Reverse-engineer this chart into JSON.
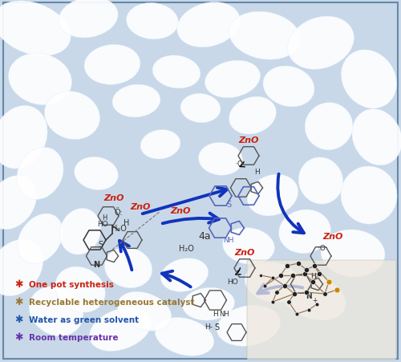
{
  "figsize": [
    5.0,
    4.52
  ],
  "dpi": 100,
  "bg_color": "#c8d8e8",
  "border_color": "#6688aa",
  "petal_color": "#ffffff",
  "petal_edge": "#ddeeff",
  "petals": [
    [
      0.08,
      0.92,
      0.2,
      0.14,
      -20
    ],
    [
      0.22,
      0.95,
      0.15,
      0.11,
      10
    ],
    [
      0.38,
      0.94,
      0.13,
      0.1,
      -5
    ],
    [
      0.52,
      0.93,
      0.16,
      0.12,
      15
    ],
    [
      0.66,
      0.9,
      0.18,
      0.13,
      -10
    ],
    [
      0.8,
      0.88,
      0.17,
      0.14,
      20
    ],
    [
      0.92,
      0.78,
      0.13,
      0.17,
      35
    ],
    [
      0.94,
      0.62,
      0.12,
      0.16,
      25
    ],
    [
      0.92,
      0.46,
      0.14,
      0.16,
      15
    ],
    [
      0.88,
      0.3,
      0.16,
      0.13,
      -5
    ],
    [
      0.78,
      0.18,
      0.17,
      0.12,
      -20
    ],
    [
      0.62,
      0.1,
      0.16,
      0.11,
      10
    ],
    [
      0.46,
      0.07,
      0.15,
      0.1,
      -15
    ],
    [
      0.3,
      0.09,
      0.16,
      0.11,
      20
    ],
    [
      0.14,
      0.14,
      0.14,
      0.13,
      -30
    ],
    [
      0.04,
      0.26,
      0.12,
      0.17,
      -40
    ],
    [
      0.03,
      0.44,
      0.11,
      0.16,
      -35
    ],
    [
      0.05,
      0.62,
      0.13,
      0.18,
      -25
    ],
    [
      0.1,
      0.78,
      0.16,
      0.14,
      -15
    ],
    [
      0.28,
      0.82,
      0.14,
      0.11,
      5
    ],
    [
      0.44,
      0.8,
      0.12,
      0.09,
      -8
    ],
    [
      0.58,
      0.78,
      0.14,
      0.1,
      12
    ],
    [
      0.72,
      0.76,
      0.13,
      0.11,
      -15
    ],
    [
      0.82,
      0.65,
      0.12,
      0.13,
      30
    ],
    [
      0.8,
      0.5,
      0.11,
      0.13,
      20
    ],
    [
      0.76,
      0.36,
      0.13,
      0.12,
      10
    ],
    [
      0.68,
      0.22,
      0.14,
      0.11,
      -10
    ],
    [
      0.52,
      0.16,
      0.13,
      0.09,
      5
    ],
    [
      0.36,
      0.14,
      0.14,
      0.1,
      -20
    ],
    [
      0.2,
      0.2,
      0.13,
      0.12,
      -30
    ],
    [
      0.1,
      0.34,
      0.1,
      0.15,
      -35
    ],
    [
      0.1,
      0.52,
      0.11,
      0.15,
      -28
    ],
    [
      0.18,
      0.68,
      0.14,
      0.13,
      -18
    ],
    [
      0.34,
      0.72,
      0.12,
      0.09,
      5
    ],
    [
      0.5,
      0.7,
      0.1,
      0.08,
      -5
    ],
    [
      0.63,
      0.68,
      0.12,
      0.1,
      18
    ],
    [
      0.24,
      0.52,
      0.11,
      0.09,
      -10
    ],
    [
      0.4,
      0.6,
      0.1,
      0.08,
      8
    ],
    [
      0.55,
      0.56,
      0.11,
      0.09,
      -5
    ],
    [
      0.68,
      0.46,
      0.13,
      0.11,
      20
    ],
    [
      0.62,
      0.32,
      0.13,
      0.1,
      -8
    ],
    [
      0.46,
      0.24,
      0.12,
      0.09,
      12
    ],
    [
      0.32,
      0.26,
      0.12,
      0.11,
      -15
    ],
    [
      0.2,
      0.36,
      0.1,
      0.13,
      -22
    ]
  ],
  "zno_color": "#cc2211",
  "arrow_color": "#1133bb",
  "legend": [
    {
      "sym": "✱",
      "text": "One pot synthesis",
      "sym_color": "#cc2211",
      "text_color": "#cc2211"
    },
    {
      "sym": "✱",
      "text": "Recyclable heterogeneous catalyst",
      "sym_color": "#997733",
      "text_color": "#997733"
    },
    {
      "sym": "✱",
      "text": "Water as green solvent",
      "sym_color": "#2255aa",
      "text_color": "#2255aa"
    },
    {
      "sym": "✱",
      "text": "Room temperature",
      "sym_color": "#6633aa",
      "text_color": "#6633aa"
    }
  ]
}
